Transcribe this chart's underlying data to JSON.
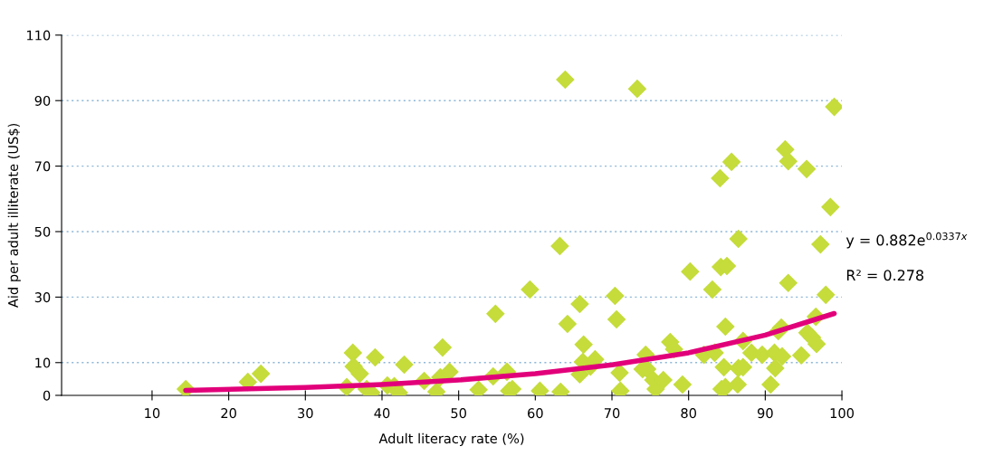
{
  "chart_data": {
    "type": "scatter",
    "xlabel": "Adult literacy rate (%)",
    "ylabel": "Aid per adult illiterate (US$)",
    "xlim": [
      -1.8,
      100
    ],
    "xticks": [
      10,
      20,
      30,
      40,
      50,
      60,
      70,
      80,
      90,
      100
    ],
    "ylim": [
      0,
      110
    ],
    "yticks": [
      0,
      10,
      30,
      50,
      70,
      90,
      110
    ],
    "grid": "y",
    "marker": "diamond",
    "series": [
      {
        "color": "#c5dc3a",
        "x": [
          14.4,
          22.5,
          24.2,
          35.4,
          36.2,
          36.3,
          37.1,
          38.0,
          38.6,
          39.1,
          40.7,
          41.6,
          42.2,
          42.9,
          45.5,
          47.1,
          47.6,
          47.9,
          48.8,
          52.6,
          54.5,
          54.8,
          56.3,
          56.6,
          57.0,
          59.3,
          60.6,
          63.2,
          63.3,
          63.9,
          64.2,
          65.8,
          65.8,
          66.2,
          66.3,
          67.2,
          67.8,
          70.4,
          70.6,
          71.0,
          71.1,
          73.3,
          74.0,
          74.4,
          74.6,
          75.4,
          75.7,
          76.7,
          77.6,
          78.1,
          79.2,
          80.2,
          82.0,
          83.1,
          83.4,
          84.1,
          84.2,
          84.3,
          84.6,
          84.8,
          85.0,
          84.8,
          85.6,
          86.4,
          86.5,
          86.5,
          87.1,
          87.1,
          88.2,
          89.6,
          90.7,
          91.2,
          91.3,
          91.7,
          92.1,
          92.2,
          92.6,
          93.0,
          93.0,
          94.7,
          95.4,
          95.5,
          96.1,
          96.7,
          96.6,
          97.2,
          97.9,
          98.5,
          99.0
        ],
        "values": [
          1.9,
          4.1,
          6.6,
          2.5,
          13,
          8.8,
          6.6,
          1.9,
          0.8,
          11.6,
          3,
          2.8,
          0.8,
          9.4,
          4.4,
          1.1,
          5.5,
          14.6,
          7.2,
          1.7,
          5.8,
          24.9,
          7.2,
          1.4,
          1.9,
          32.3,
          1.4,
          45.6,
          1.1,
          96.4,
          21.8,
          27.9,
          6.4,
          10.2,
          15.5,
          8.8,
          11,
          30.4,
          23.2,
          6.9,
          1.4,
          93.6,
          8,
          12.4,
          8,
          4.7,
          1.9,
          4.7,
          16.3,
          14.1,
          3.3,
          37.8,
          12.4,
          32.3,
          13,
          66.3,
          39.2,
          1.9,
          8.6,
          2.5,
          39.5,
          21,
          71.3,
          3.3,
          8.3,
          47.8,
          8.6,
          16.6,
          13,
          12.4,
          3.3,
          13,
          8.3,
          19.6,
          20.7,
          11.9,
          75.1,
          71.5,
          34.3,
          12.2,
          69.1,
          19.1,
          17.7,
          15.7,
          24,
          46.1,
          30.7,
          57.5,
          88.1
        ]
      },
      {
        "type": "line",
        "color": "#e2007a",
        "marker": "none",
        "line_style": "solid",
        "x": [
          14.4,
          30,
          40,
          50,
          60,
          70,
          80,
          90,
          99
        ],
        "values": [
          1.5,
          2.4,
          3.3,
          4.7,
          6.6,
          9.3,
          13,
          18.4,
          25
        ]
      }
    ],
    "annotations": [
      "y = 0.882e$^{0.0337x}$",
      "R² = 0.278"
    ]
  }
}
